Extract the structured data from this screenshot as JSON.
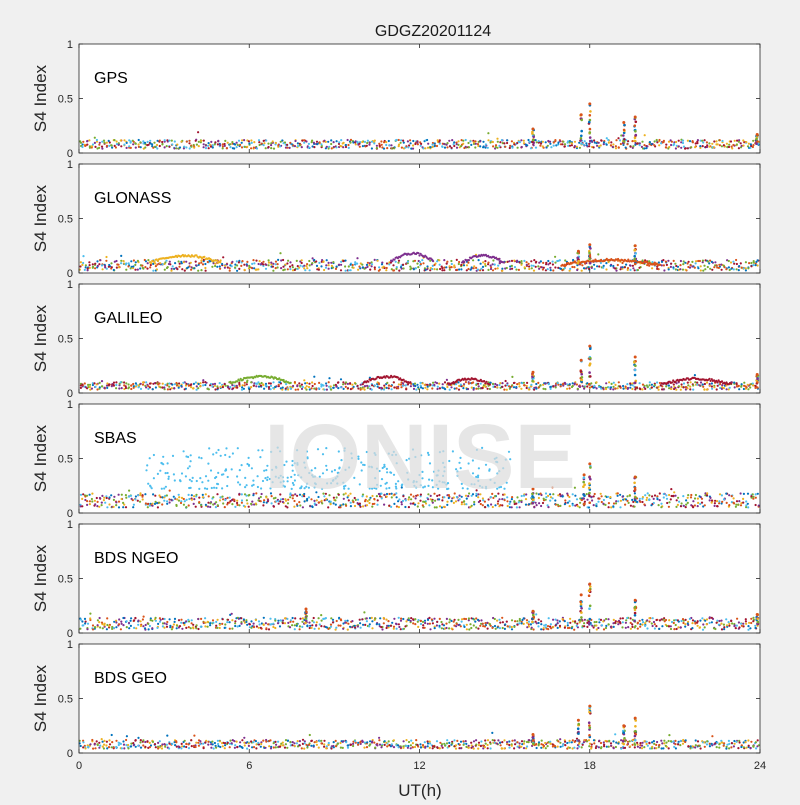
{
  "figure": {
    "title": "GDGZ20201124",
    "xlabel": "UT(h)",
    "watermark": "IONISE"
  },
  "colors": {
    "series": [
      "#0072BD",
      "#D95319",
      "#EDB120",
      "#7E2F8E",
      "#77AC30",
      "#4DBEEE",
      "#A2142F"
    ],
    "background": "#f0f0f0",
    "axes_bg": "#ffffff",
    "axes_line": "#262626",
    "watermark": "#e3e3e3"
  },
  "chart_data": [
    {
      "type": "scatter",
      "label": "GPS",
      "ylabel": "S4 Index",
      "xlim": [
        0,
        24
      ],
      "ylim": [
        0,
        1
      ],
      "xticks": [
        0,
        6,
        12,
        18,
        24
      ],
      "yticks": [
        "0",
        "0.5",
        "1"
      ],
      "grid": false,
      "baseline": [
        0.04,
        0.12
      ],
      "spikes": [
        [
          16.0,
          0.22
        ],
        [
          17.7,
          0.35
        ],
        [
          18.0,
          0.45
        ],
        [
          19.2,
          0.28
        ],
        [
          19.6,
          0.33
        ],
        [
          23.9,
          0.17
        ]
      ]
    },
    {
      "type": "scatter",
      "label": "GLONASS",
      "ylabel": "S4 Index",
      "xlim": [
        0,
        24
      ],
      "ylim": [
        0,
        1
      ],
      "xticks": [
        0,
        6,
        12,
        18,
        24
      ],
      "yticks": [
        "0",
        "0.5",
        "1"
      ],
      "grid": false,
      "baseline": [
        0.02,
        0.12
      ],
      "arcs": [
        [
          2.5,
          5.0,
          0.16
        ],
        [
          11.0,
          12.5,
          0.18
        ],
        [
          13.5,
          15.0,
          0.16
        ],
        [
          17.0,
          20.5,
          0.12
        ]
      ],
      "spikes": [
        [
          17.6,
          0.2
        ],
        [
          18.0,
          0.26
        ],
        [
          19.6,
          0.25
        ]
      ]
    },
    {
      "type": "scatter",
      "label": "GALILEO",
      "ylabel": "S4 Index",
      "xlim": [
        0,
        24
      ],
      "ylim": [
        0,
        1
      ],
      "xticks": [
        0,
        6,
        12,
        18,
        24
      ],
      "yticks": [
        "0",
        "0.5",
        "1"
      ],
      "grid": false,
      "baseline": [
        0.03,
        0.1
      ],
      "arcs": [
        [
          5.3,
          7.5,
          0.15
        ],
        [
          10.0,
          11.7,
          0.15
        ],
        [
          13.0,
          14.5,
          0.13
        ],
        [
          20.5,
          23.0,
          0.13
        ]
      ],
      "spikes": [
        [
          16.0,
          0.19
        ],
        [
          17.7,
          0.3
        ],
        [
          18.0,
          0.43
        ],
        [
          19.6,
          0.33
        ],
        [
          23.9,
          0.17
        ]
      ]
    },
    {
      "type": "scatter",
      "label": "SBAS",
      "ylabel": "S4 Index",
      "xlim": [
        0,
        24
      ],
      "ylim": [
        0,
        1
      ],
      "xticks": [
        0,
        6,
        12,
        18,
        24
      ],
      "yticks": [
        "0",
        "0.5",
        "1"
      ],
      "grid": false,
      "baseline": [
        0.05,
        0.18
      ],
      "scatter_cloud": {
        "x_range": [
          2.3,
          15.2
        ],
        "y_range": [
          0.22,
          0.6
        ]
      },
      "spikes": [
        [
          16.0,
          0.22
        ],
        [
          17.8,
          0.35
        ],
        [
          18.0,
          0.45
        ],
        [
          19.6,
          0.33
        ]
      ]
    },
    {
      "type": "scatter",
      "label": "BDS NGEO",
      "ylabel": "S4 Index",
      "xlim": [
        0,
        24
      ],
      "ylim": [
        0,
        1
      ],
      "xticks": [
        0,
        6,
        12,
        18,
        24
      ],
      "yticks": [
        "0",
        "0.5",
        "1"
      ],
      "grid": false,
      "baseline": [
        0.03,
        0.14
      ],
      "spikes": [
        [
          8.0,
          0.22
        ],
        [
          16.0,
          0.2
        ],
        [
          17.7,
          0.35
        ],
        [
          18.0,
          0.45
        ],
        [
          19.6,
          0.3
        ],
        [
          23.9,
          0.17
        ]
      ]
    },
    {
      "type": "scatter",
      "label": "BDS GEO",
      "ylabel": "S4 Index",
      "xlim": [
        0,
        24
      ],
      "ylim": [
        0,
        1
      ],
      "xticks": [
        0,
        6,
        12,
        18,
        24
      ],
      "yticks": [
        "0",
        "0.5",
        "1"
      ],
      "grid": false,
      "baseline": [
        0.04,
        0.12
      ],
      "spikes": [
        [
          16.0,
          0.17
        ],
        [
          17.6,
          0.3
        ],
        [
          18.0,
          0.43
        ],
        [
          19.2,
          0.25
        ],
        [
          19.6,
          0.32
        ]
      ]
    }
  ]
}
